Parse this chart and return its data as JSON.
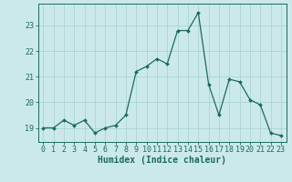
{
  "x": [
    0,
    1,
    2,
    3,
    4,
    5,
    6,
    7,
    8,
    9,
    10,
    11,
    12,
    13,
    14,
    15,
    16,
    17,
    18,
    19,
    20,
    21,
    22,
    23
  ],
  "y": [
    19.0,
    19.0,
    19.3,
    19.1,
    19.3,
    18.8,
    19.0,
    19.1,
    19.5,
    21.2,
    21.4,
    21.7,
    21.5,
    22.8,
    22.8,
    23.5,
    20.7,
    19.5,
    20.9,
    20.8,
    20.1,
    19.9,
    18.8,
    18.7
  ],
  "line_color": "#1a6b5a",
  "marker": "D",
  "marker_size": 2.0,
  "bg_color": "#cce9e9",
  "grid_color": "#aad4d4",
  "ylabel_vals": [
    19,
    20,
    21,
    22,
    23
  ],
  "xlabel": "Humidex (Indice chaleur)",
  "xlabel_fontsize": 7,
  "tick_fontsize": 6,
  "ylim": [
    18.45,
    23.85
  ],
  "xlim": [
    -0.5,
    23.5
  ],
  "title": ""
}
